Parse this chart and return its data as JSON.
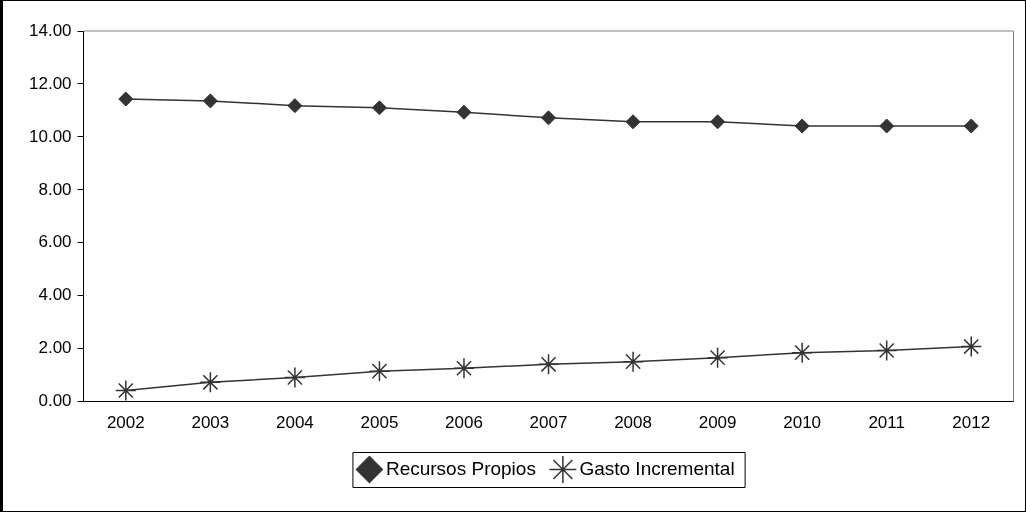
{
  "chart_data": {
    "type": "line",
    "categories": [
      "2002",
      "2003",
      "2004",
      "2005",
      "2006",
      "2007",
      "2008",
      "2009",
      "2010",
      "2011",
      "2012"
    ],
    "series": [
      {
        "name": "Recursos Propios",
        "color": "#333333",
        "marker": "diamond",
        "values": [
          11.43,
          11.36,
          11.18,
          11.1,
          10.93,
          10.72,
          10.57,
          10.57,
          10.41,
          10.41,
          10.41
        ]
      },
      {
        "name": "Gasto Incremental",
        "color": "#333333",
        "marker": "cross",
        "values": [
          0.42,
          0.73,
          0.91,
          1.15,
          1.26,
          1.41,
          1.51,
          1.66,
          1.85,
          1.93,
          2.08
        ]
      }
    ],
    "ylim": [
      0,
      14
    ],
    "yticks": [
      {
        "value": 0,
        "label": "0.00"
      },
      {
        "value": 2,
        "label": "2.00"
      },
      {
        "value": 4,
        "label": "4.00"
      },
      {
        "value": 6,
        "label": "6.00"
      },
      {
        "value": 8,
        "label": "8.00"
      },
      {
        "value": 10,
        "label": "10.00"
      },
      {
        "value": 12,
        "label": "12.00"
      },
      {
        "value": 14,
        "label": "14.00"
      }
    ],
    "grid": false,
    "legend": "bottom",
    "line_style": "solid"
  }
}
